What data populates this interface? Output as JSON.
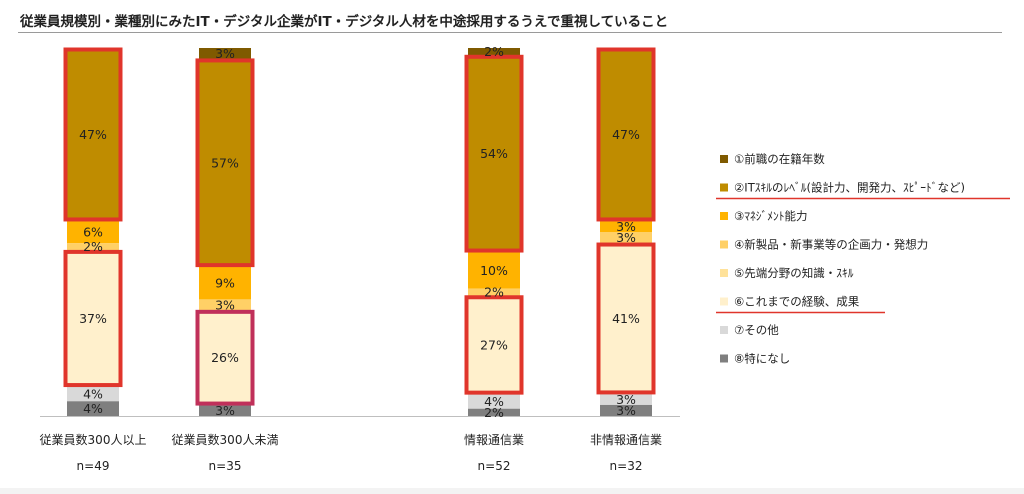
{
  "title": "従業員規模別・業種別にみたIT・デジタル企業がIT・デジタル人材を中途採用するうえで重視していること",
  "chart_data": {
    "type": "bar",
    "stacked": true,
    "series": [
      {
        "name": "①前職の在籍年数",
        "color": "#7f5a00"
      },
      {
        "name": "②ITｽｷﾙのﾚﾍﾞﾙ(設計力、開発力、ｽﾋﾟｰﾄﾞなど)",
        "color": "#bf8c00"
      },
      {
        "name": "③ﾏﾈｼﾞﾒﾝﾄ能力",
        "color": "#ffb300"
      },
      {
        "name": "④新製品・新事業等の企画力・発想力",
        "color": "#ffd066"
      },
      {
        "name": "⑤先端分野の知識・ｽｷﾙ",
        "color": "#ffe29a"
      },
      {
        "name": "⑥これまでの経験、成果",
        "color": "#fff0cc"
      },
      {
        "name": "⑦その他",
        "color": "#d9d9d9"
      },
      {
        "name": "⑧特になし",
        "color": "#7f7f7f"
      }
    ],
    "bars": [
      {
        "label": "従業員数300人以上",
        "n": "n=49",
        "values": [
          0,
          47,
          6,
          2,
          0,
          37,
          4,
          4
        ],
        "labels": [
          "",
          "47%",
          "6%",
          "2%",
          "",
          "37%",
          "4%",
          "4%"
        ]
      },
      {
        "label": "従業員数300人未満",
        "n": "n=35",
        "values": [
          3,
          57,
          9,
          3,
          0,
          26,
          0,
          3
        ],
        "labels": [
          "3%",
          "57%",
          "9%",
          "3%",
          "",
          "26%",
          "",
          "3%"
        ]
      },
      {
        "label": "情報通信業",
        "n": "n=52",
        "values": [
          2,
          54,
          10,
          2,
          0,
          27,
          4,
          2
        ],
        "labels": [
          "2%",
          "54%",
          "10%",
          "2%",
          "",
          "27%",
          "4%",
          "2%"
        ]
      },
      {
        "label": "非情報通信業",
        "n": "n=32",
        "values": [
          0,
          47,
          3,
          3,
          0,
          41,
          3,
          3
        ],
        "labels": [
          "",
          "47%",
          "3%",
          "3%",
          "",
          "41%",
          "3%",
          "3%"
        ]
      }
    ],
    "ylim": [
      0,
      100
    ],
    "highlight_series": [
      1,
      5
    ],
    "underlined_legend": [
      1,
      5
    ]
  }
}
